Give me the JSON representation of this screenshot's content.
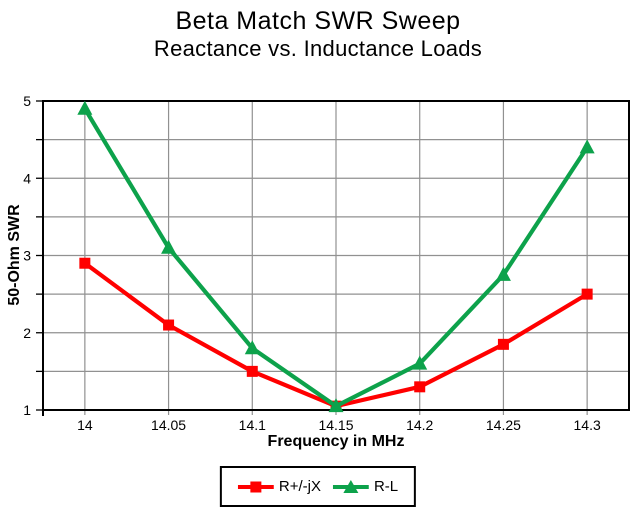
{
  "chart_data": {
    "type": "line",
    "title": "Beta Match SWR Sweep",
    "subtitle": "Reactance vs. Inductance Loads",
    "xlabel": "Frequency in MHz",
    "ylabel": "50-Ohm SWR",
    "x": [
      14,
      14.05,
      14.1,
      14.15,
      14.2,
      14.25,
      14.3
    ],
    "xtick_labels": [
      "14",
      "14.05",
      "14.1",
      "14.15",
      "14.2",
      "14.25",
      "14.3"
    ],
    "yticks": [
      1,
      2,
      3,
      4,
      5
    ],
    "ygrid_step": 0.5,
    "xlim": [
      13.975,
      14.325
    ],
    "ylim": [
      1,
      5
    ],
    "grid": true,
    "legend_position": "bottom-center",
    "series": [
      {
        "name": "R+/-jX",
        "marker": "square",
        "color": "#ff0000",
        "values": [
          2.9,
          2.1,
          1.5,
          1.05,
          1.3,
          1.85,
          2.5
        ]
      },
      {
        "name": "R-L",
        "marker": "triangle-up",
        "color": "#0da24b",
        "values": [
          4.9,
          3.1,
          1.8,
          1.05,
          1.6,
          2.75,
          4.4
        ]
      }
    ],
    "grid_color": "#919191",
    "axis_color": "#000000",
    "background": "#ffffff",
    "tick_label_color": "#000000"
  }
}
